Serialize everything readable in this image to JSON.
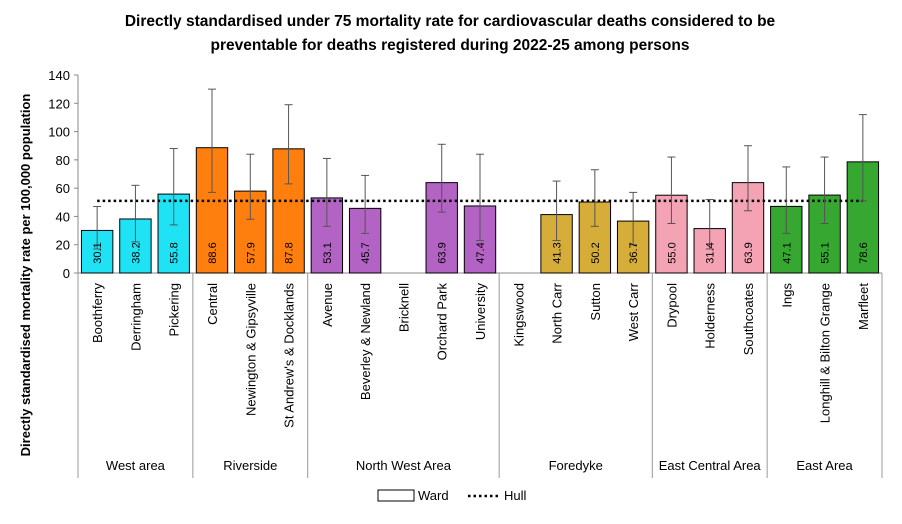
{
  "chart_data": {
    "type": "bar",
    "title": [
      "Directly standardised under 75 mortality rate for cardiovascular deaths considered to be",
      "preventable for deaths registered during 2022-25 among persons"
    ],
    "y_label": "Directly standardised mortality rate per 100,000 population",
    "groups": [
      {
        "name": "West area",
        "color": "#1fe3f5",
        "categories": [
          "Boothferry",
          "Derringham",
          "Pickering"
        ]
      },
      {
        "name": "Riverside",
        "color": "#ff7f0e",
        "categories": [
          "Central",
          "Newington & Gipsyville",
          "St Andrew's & Docklands"
        ]
      },
      {
        "name": "North West Area",
        "color": "#b263c3",
        "categories": [
          "Avenue",
          "Beverley & Newland",
          "Bricknell",
          "Orchard Park",
          "University"
        ]
      },
      {
        "name": "Foredyke",
        "color": "#d6ad38",
        "categories": [
          "Kingswood",
          "North Carr",
          "Sutton",
          "West Carr"
        ]
      },
      {
        "name": "East Central Area",
        "color": "#f4a3b4",
        "categories": [
          "Drypool",
          "Holderness",
          "Southcoates"
        ]
      },
      {
        "name": "East Area",
        "color": "#36a832",
        "categories": [
          "Ings",
          "Longhill & Bilton Grange",
          "Marfleet"
        ]
      }
    ],
    "series": [
      {
        "name": "Ward",
        "values": [
          30.1,
          38.2,
          55.8,
          88.6,
          57.9,
          87.8,
          53.1,
          45.7,
          null,
          63.9,
          47.4,
          null,
          41.3,
          50.2,
          36.7,
          55.0,
          31.4,
          63.9,
          47.1,
          55.1,
          78.6
        ],
        "value_labels": [
          "30.1",
          "38.2",
          "55.8",
          "88.6",
          "57.9",
          "87.8",
          "53.1",
          "45.7",
          null,
          "63.9",
          "47.4",
          null,
          "41.3",
          "50.2",
          "36.7",
          "55.0",
          "31.4",
          "63.9",
          "47.1",
          "55.1",
          "78.6"
        ],
        "ci_lower": [
          17,
          22,
          34,
          57,
          38,
          63,
          33,
          28,
          null,
          43,
          23,
          null,
          23,
          33,
          20,
          35,
          17,
          44,
          28,
          35,
          51
        ],
        "ci_upper": [
          47,
          62,
          88,
          130,
          84,
          119,
          81,
          69,
          null,
          91,
          84,
          null,
          65,
          73,
          57,
          82,
          52,
          90,
          75,
          82,
          112
        ]
      }
    ],
    "reference": {
      "name": "Hull",
      "value": 51
    },
    "ylim": [
      0,
      140
    ],
    "yticks": [
      0,
      20,
      40,
      60,
      80,
      100,
      120,
      140
    ]
  }
}
